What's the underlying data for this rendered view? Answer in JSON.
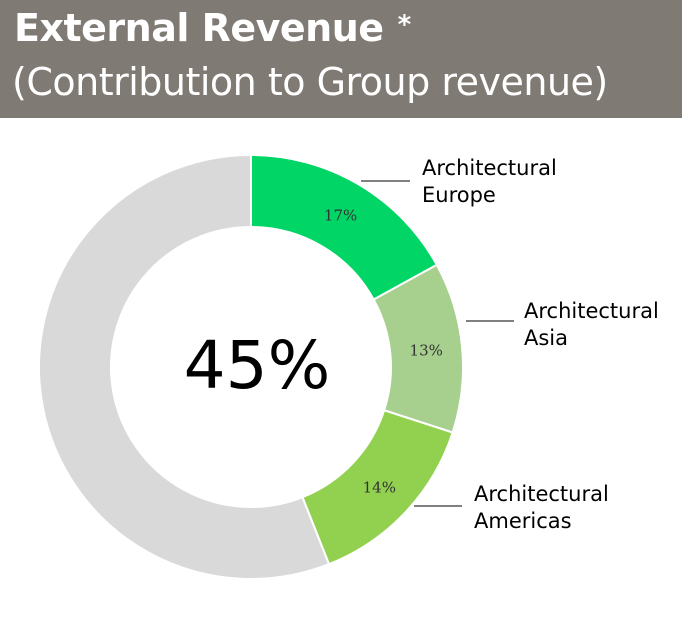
{
  "header": {
    "title": "External Revenue",
    "asterisk": "*",
    "subtitle": "(Contribution to Group revenue)"
  },
  "colors": {
    "header_bg": "#7f7a73",
    "remainder": "#d9d9d9"
  },
  "chart_data": {
    "type": "pie",
    "style": "donut",
    "title": "External Revenue",
    "subtitle": "(Contribution to Group revenue)",
    "center_label": "45%",
    "total_percent": 45,
    "series": [
      {
        "name": "Architectural Europe",
        "label_lines": [
          "Architectural",
          "Europe"
        ],
        "value": 17,
        "value_label": "17%",
        "color": "#00d566"
      },
      {
        "name": "Architectural Asia",
        "label_lines": [
          "Architectural",
          "Asia"
        ],
        "value": 13,
        "value_label": "13%",
        "color": "#a7cf8d"
      },
      {
        "name": "Architectural Americas",
        "label_lines": [
          "Architectural",
          "Americas"
        ],
        "value": 14,
        "value_label": "14%",
        "color": "#92d050"
      }
    ],
    "remainder": {
      "value": 56,
      "color": "#d9d9d9"
    },
    "legend_placement": "right"
  }
}
